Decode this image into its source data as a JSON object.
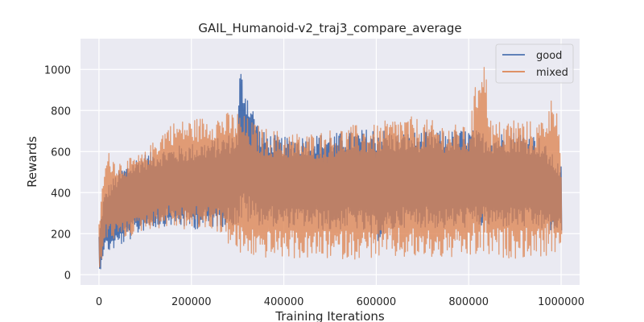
{
  "chart_data": {
    "type": "line",
    "title": "GAIL_Humanoid-v2_traj3_compare_average",
    "xlabel": "Training Iterations",
    "ylabel": "Rewards",
    "xlim": [
      -40000,
      1040000
    ],
    "ylim": [
      -50,
      1150
    ],
    "x_ticks": [
      0,
      200000,
      400000,
      600000,
      800000,
      1000000
    ],
    "x_tick_labels": [
      "0",
      "200000",
      "400000",
      "600000",
      "800000",
      "1000000"
    ],
    "y_ticks": [
      0,
      200,
      400,
      600,
      800,
      1000
    ],
    "y_tick_labels": [
      "0",
      "200",
      "400",
      "600",
      "800",
      "1000"
    ],
    "grid": true,
    "legend_position": "top-right",
    "series": [
      {
        "name": "good",
        "color": "#4c72b0",
        "x": [
          0,
          10000,
          20000,
          40000,
          60000,
          80000,
          100000,
          150000,
          200000,
          250000,
          300000,
          305000,
          350000,
          400000,
          450000,
          500000,
          550000,
          600000,
          650000,
          700000,
          750000,
          800000,
          850000,
          900000,
          950000,
          1000000
        ],
        "upper": [
          200,
          380,
          440,
          500,
          540,
          570,
          590,
          620,
          640,
          660,
          700,
          1020,
          700,
          670,
          680,
          690,
          700,
          720,
          690,
          700,
          700,
          710,
          690,
          700,
          680,
          530
        ],
        "lower": [
          0,
          120,
          110,
          130,
          160,
          190,
          220,
          240,
          220,
          230,
          240,
          250,
          240,
          230,
          230,
          210,
          230,
          160,
          230,
          230,
          220,
          230,
          230,
          230,
          220,
          200
        ]
      },
      {
        "name": "mixed",
        "color": "#dd8452",
        "x": [
          0,
          10000,
          20000,
          40000,
          60000,
          80000,
          100000,
          150000,
          200000,
          250000,
          300000,
          350000,
          400000,
          450000,
          500000,
          550000,
          600000,
          650000,
          700000,
          750000,
          800000,
          830000,
          850000,
          900000,
          950000,
          990000,
          1000000
        ],
        "upper": [
          250,
          500,
          600,
          560,
          560,
          580,
          600,
          740,
          760,
          780,
          800,
          720,
          700,
          690,
          710,
          730,
          730,
          780,
          760,
          740,
          720,
          1130,
          740,
          770,
          740,
          910,
          540
        ],
        "lower": [
          0,
          160,
          170,
          170,
          180,
          200,
          220,
          230,
          210,
          220,
          90,
          80,
          80,
          75,
          75,
          75,
          80,
          75,
          75,
          75,
          80,
          80,
          80,
          80,
          85,
          90,
          170
        ]
      }
    ]
  }
}
